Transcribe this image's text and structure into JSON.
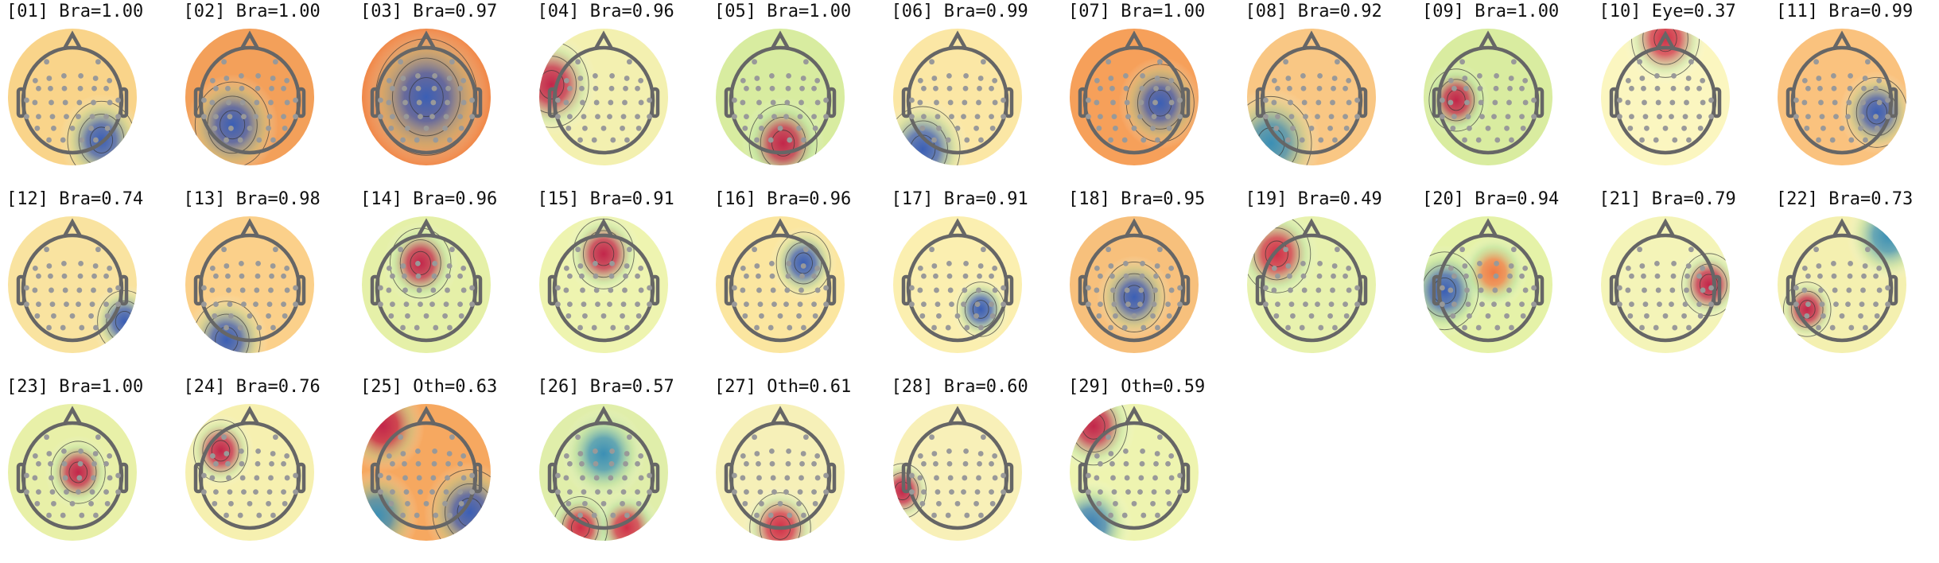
{
  "components": [
    {
      "title": "[01] Bra=1.00",
      "base": "#f9d48a",
      "blobs": [
        {
          "c": "#3b5fb5"
        }
      ]
    },
    {
      "title": "[02] Bra=1.00",
      "base": "#f3a05a",
      "blobs": [
        {
          "c": "#3b5fb5"
        }
      ]
    },
    {
      "title": "[03] Bra=0.97",
      "base": "#f08a4b",
      "blobs": [
        {
          "c": "#3b5fb5"
        }
      ]
    },
    {
      "title": "[04] Bra=0.96",
      "base": "#f3f0b0",
      "blobs": [
        {
          "c": "#c2264a"
        }
      ]
    },
    {
      "title": "[05] Bra=1.00",
      "base": "#d8eca0",
      "blobs": [
        {
          "c": "#c2264a"
        }
      ]
    },
    {
      "title": "[06] Bra=0.99",
      "base": "#fbe7a5",
      "blobs": [
        {
          "c": "#3b5fb5"
        }
      ]
    },
    {
      "title": "[07] Bra=1.00",
      "base": "#f6a05a",
      "blobs": [
        {
          "c": "#3b5fb5"
        }
      ]
    },
    {
      "title": "[08] Bra=0.92",
      "base": "#f9c784",
      "blobs": [
        {
          "c": "#3b8fb5"
        }
      ]
    },
    {
      "title": "[09] Bra=1.00",
      "base": "#d9eca0",
      "blobs": [
        {
          "c": "#c2264a"
        }
      ]
    },
    {
      "title": "[10] Eye=0.37",
      "base": "#fbf6c0",
      "blobs": [
        {
          "c": "#d03048"
        }
      ]
    },
    {
      "title": "[11] Bra=0.99",
      "base": "#fac27e",
      "blobs": [
        {
          "c": "#3b5fb5"
        }
      ]
    },
    {
      "title": "[12] Bra=0.74",
      "base": "#f9e3a0",
      "blobs": [
        {
          "c": "#3b5fb5"
        }
      ]
    },
    {
      "title": "[13] Bra=0.98",
      "base": "#fbd08a",
      "blobs": [
        {
          "c": "#3b5fb5"
        }
      ]
    },
    {
      "title": "[14] Bra=0.96",
      "base": "#e5f0a8",
      "blobs": [
        {
          "c": "#c2264a"
        }
      ]
    },
    {
      "title": "[15] Bra=0.91",
      "base": "#eef4b0",
      "blobs": [
        {
          "c": "#c2264a"
        }
      ]
    },
    {
      "title": "[16] Bra=0.96",
      "base": "#fbe6a0",
      "blobs": [
        {
          "c": "#3b5fb5"
        }
      ]
    },
    {
      "title": "[17] Bra=0.91",
      "base": "#fbefb0",
      "blobs": [
        {
          "c": "#3b5fb5"
        }
      ]
    },
    {
      "title": "[18] Bra=0.95",
      "base": "#f7c07c",
      "blobs": [
        {
          "c": "#3b5fb5"
        }
      ]
    },
    {
      "title": "[19] Bra=0.49",
      "base": "#e8f2ae",
      "blobs": [
        {
          "c": "#d03048"
        }
      ]
    },
    {
      "title": "[20] Bra=0.94",
      "base": "#e5f2a8",
      "blobs": [
        {
          "c": "#3b5fb5"
        },
        {
          "c": "#f07a45"
        }
      ]
    },
    {
      "title": "[21] Bra=0.79",
      "base": "#f4f4b8",
      "blobs": [
        {
          "c": "#c2264a"
        }
      ]
    },
    {
      "title": "[22] Bra=0.73",
      "base": "#f4f0b0",
      "blobs": [
        {
          "c": "#c2264a"
        },
        {
          "c": "#3b8fb5"
        }
      ]
    },
    {
      "title": "[23] Bra=1.00",
      "base": "#e8f0a8",
      "blobs": [
        {
          "c": "#c2264a"
        }
      ]
    },
    {
      "title": "[24] Bra=0.76",
      "base": "#f6f0b0",
      "blobs": [
        {
          "c": "#c2264a"
        }
      ]
    },
    {
      "title": "[25] Oth=0.63",
      "base": "#f6a860",
      "blobs": [
        {
          "c": "#3b5fb5"
        },
        {
          "c": "#3b8fb5"
        },
        {
          "c": "#c2264a"
        }
      ]
    },
    {
      "title": "[26] Bra=0.57",
      "base": "#e0eeaa",
      "blobs": [
        {
          "c": "#d03048"
        },
        {
          "c": "#d03048"
        },
        {
          "c": "#3b8fb5"
        }
      ]
    },
    {
      "title": "[27] Oth=0.61",
      "base": "#f6f0b8",
      "blobs": [
        {
          "c": "#d03048"
        }
      ]
    },
    {
      "title": "[28] Bra=0.60",
      "base": "#f8f0b8",
      "blobs": [
        {
          "c": "#c2264a"
        }
      ]
    },
    {
      "title": "[29] Oth=0.59",
      "base": "#eef4b0",
      "blobs": [
        {
          "c": "#c2264a"
        },
        {
          "c": "#3b7fb5"
        }
      ]
    }
  ]
}
